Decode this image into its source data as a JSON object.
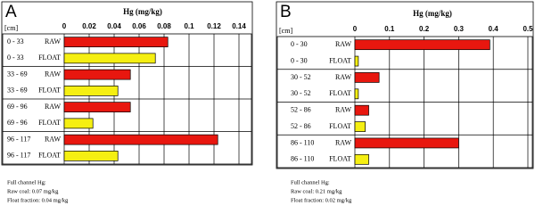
{
  "chart_data": [
    {
      "type": "bar",
      "orientation": "horizontal",
      "panel_label": "A",
      "title": "Hg (mg/kg)",
      "y_axis_label": "[cm]",
      "categories": [
        "0 - 33",
        "0 - 33",
        "33 - 69",
        "33 - 69",
        "69 - 96",
        "69 - 96",
        "96 - 117",
        "96 - 117"
      ],
      "fractions": [
        "RAW",
        "FLOAT",
        "RAW",
        "FLOAT",
        "RAW",
        "FLOAT",
        "RAW",
        "FLOAT"
      ],
      "values": [
        0.083,
        0.073,
        0.053,
        0.043,
        0.053,
        0.023,
        0.123,
        0.043
      ],
      "colors": [
        "#e8170f",
        "#f5ef12",
        "#e8170f",
        "#f5ef12",
        "#e8170f",
        "#f5ef12",
        "#e8170f",
        "#f5ef12"
      ],
      "xlim": [
        0,
        0.14
      ],
      "xticks": [
        0,
        0.02,
        0.04,
        0.06,
        0.08,
        0.1,
        0.12,
        0.14
      ],
      "grid": true,
      "notes": [
        "Full channel Hg:",
        "Raw coal: 0.07 mg/kg",
        "Float fraction: 0.04 mg/kg"
      ]
    },
    {
      "type": "bar",
      "orientation": "horizontal",
      "panel_label": "B",
      "title": "Hg (mg/kg)",
      "y_axis_label": "[cm]",
      "categories": [
        "0 - 30",
        "0 - 30",
        "30 - 52",
        "30 - 52",
        "52 - 86",
        "52 - 86",
        "86 - 110",
        "86 - 110"
      ],
      "fractions": [
        "RAW",
        "FLOAT",
        "RAW",
        "FLOAT",
        "RAW",
        "FLOAT",
        "RAW",
        "FLOAT"
      ],
      "values": [
        0.39,
        0.01,
        0.07,
        0.01,
        0.04,
        0.03,
        0.3,
        0.04
      ],
      "colors": [
        "#e8170f",
        "#f5ef12",
        "#e8170f",
        "#f5ef12",
        "#e8170f",
        "#f5ef12",
        "#e8170f",
        "#f5ef12"
      ],
      "xlim": [
        0,
        0.5
      ],
      "xticks": [
        0,
        0.1,
        0.2,
        0.3,
        0.4,
        0.5
      ],
      "grid": true,
      "notes": [
        "Full channel Hg:",
        "Raw coal: 0.21 mg/kg",
        "Float fraction: 0.02 mg/kg"
      ]
    }
  ]
}
